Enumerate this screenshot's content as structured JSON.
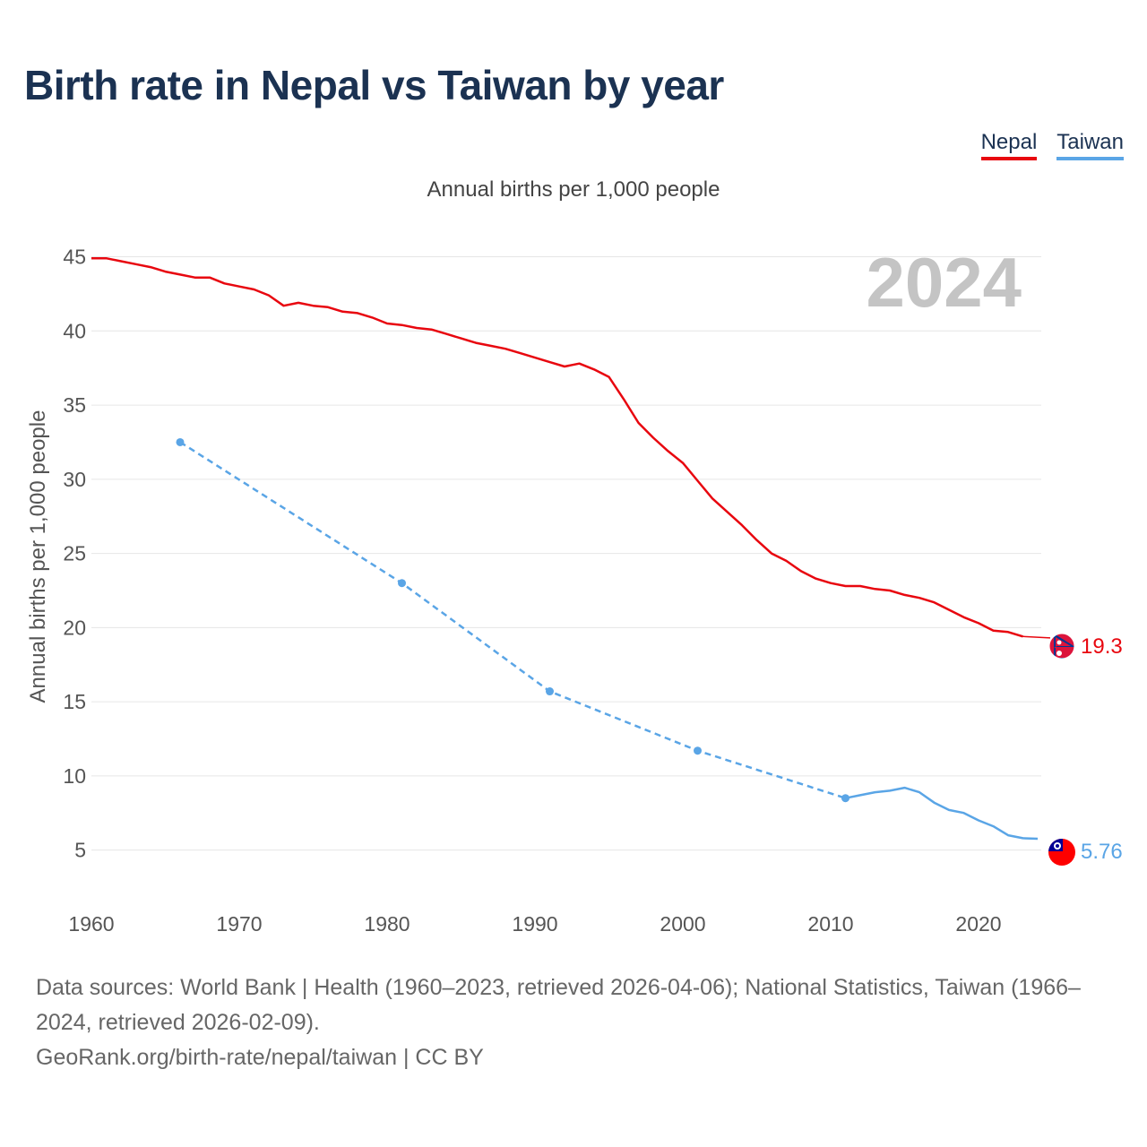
{
  "title": "Birth rate in Nepal vs Taiwan by year",
  "subtitle": "Annual births per 1,000 people",
  "legend": [
    {
      "label": "Nepal",
      "color": "#e8070f"
    },
    {
      "label": "Taiwan",
      "color": "#5aa5e6"
    }
  ],
  "footer": {
    "sources": "Data sources: World Bank | Health (1960–2023, retrieved 2026-04-06); National Statistics, Taiwan (1966–2024, retrieved 2026-02-09).",
    "credit": "GeoRank.org/birth-rate/nepal/taiwan | CC BY"
  },
  "chart_data": {
    "type": "line",
    "title": "Birth rate in Nepal vs Taiwan by year",
    "ylabel": "Annual births per 1,000 people",
    "xlabel": "",
    "xlim": [
      1960,
      2024
    ],
    "ylim": [
      2.5,
      46
    ],
    "xticks": [
      1960,
      1970,
      1980,
      1990,
      2000,
      2010,
      2020
    ],
    "yticks": [
      5,
      10,
      15,
      20,
      25,
      30,
      35,
      40,
      45
    ],
    "grid": true,
    "year_label": "2024",
    "series": [
      {
        "name": "Nepal",
        "color": "#e8070f",
        "end_label": "19.3",
        "x": [
          1960,
          1961,
          1962,
          1963,
          1964,
          1965,
          1966,
          1967,
          1968,
          1969,
          1970,
          1971,
          1972,
          1973,
          1974,
          1975,
          1976,
          1977,
          1978,
          1979,
          1980,
          1981,
          1982,
          1983,
          1984,
          1985,
          1986,
          1987,
          1988,
          1989,
          1990,
          1991,
          1992,
          1993,
          1994,
          1995,
          1996,
          1997,
          1998,
          1999,
          2000,
          2001,
          2002,
          2003,
          2004,
          2005,
          2006,
          2007,
          2008,
          2009,
          2010,
          2011,
          2012,
          2013,
          2014,
          2015,
          2016,
          2017,
          2018,
          2019,
          2020,
          2021,
          2022,
          2023
        ],
        "values": [
          44.9,
          44.9,
          44.7,
          44.5,
          44.3,
          44.0,
          43.8,
          43.6,
          43.6,
          43.2,
          43.0,
          42.8,
          42.4,
          41.7,
          41.9,
          41.7,
          41.6,
          41.3,
          41.2,
          40.9,
          40.5,
          40.4,
          40.2,
          40.1,
          39.8,
          39.5,
          39.2,
          39.0,
          38.8,
          38.5,
          38.2,
          37.9,
          37.6,
          37.8,
          37.4,
          36.9,
          35.4,
          33.8,
          32.8,
          31.9,
          31.1,
          29.9,
          28.7,
          27.8,
          26.9,
          25.9,
          25.0,
          24.5,
          23.8,
          23.3,
          23.0,
          22.8,
          22.8,
          22.6,
          22.5,
          22.2,
          22.0,
          21.7,
          21.2,
          20.7,
          20.3,
          19.8,
          19.7,
          19.4
        ],
        "value_2024": 19.3
      },
      {
        "name": "Taiwan",
        "color": "#5aa5e6",
        "end_label": "5.76",
        "census_x": [
          1966,
          1981,
          1991,
          2001,
          2011
        ],
        "census_values": [
          32.5,
          23.0,
          15.7,
          11.7,
          8.5
        ],
        "x": [
          2011,
          2012,
          2013,
          2014,
          2015,
          2016,
          2017,
          2018,
          2019,
          2020,
          2021,
          2022,
          2023,
          2024
        ],
        "values": [
          8.5,
          8.7,
          8.9,
          9.0,
          9.2,
          8.9,
          8.2,
          7.7,
          7.5,
          7.0,
          6.6,
          6.0,
          5.8,
          5.76
        ]
      }
    ]
  }
}
